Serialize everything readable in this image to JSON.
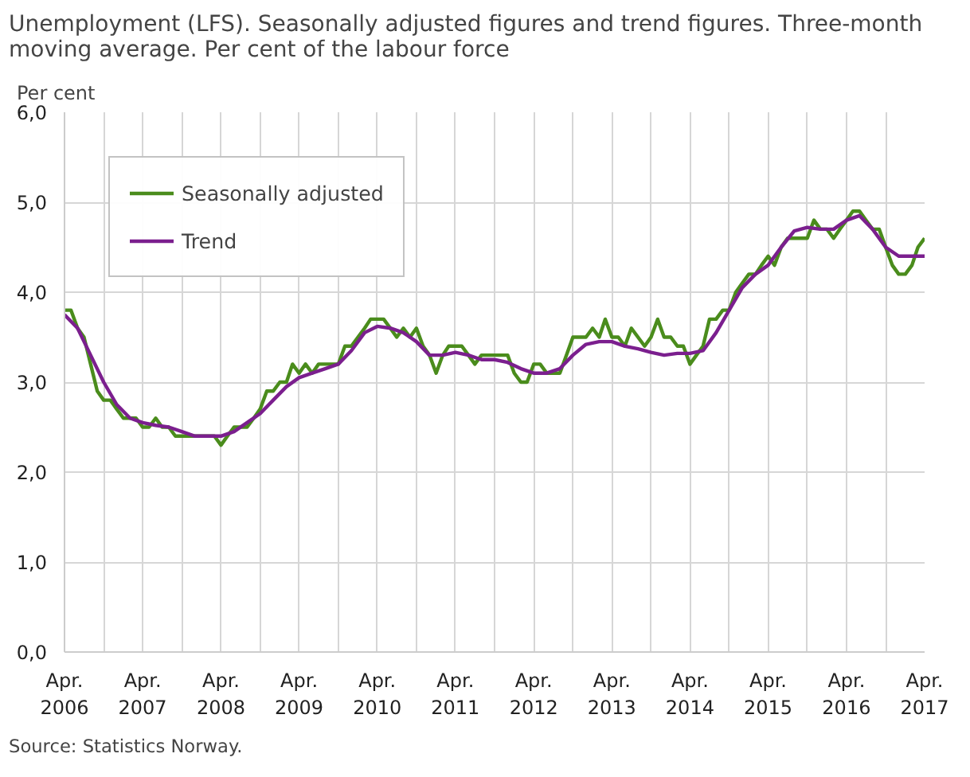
{
  "chart_data": {
    "type": "line",
    "title": "Unemployment (LFS). Seasonally adjusted figures and trend figures. Three-month moving average. Per cent of the labour force",
    "ylabel": "Per cent",
    "annotations": [
      "Source: Statistics Norway."
    ],
    "xlim": [
      "2006-04",
      "2017-04"
    ],
    "xticks": [
      {
        "value": "2006-04",
        "label": "Apr.\n2006"
      },
      {
        "value": "2006-10",
        "label": null
      },
      {
        "value": "2007-04",
        "label": "Apr.\n2007"
      },
      {
        "value": "2007-10",
        "label": null
      },
      {
        "value": "2008-04",
        "label": "Apr.\n2008"
      },
      {
        "value": "2008-10",
        "label": null
      },
      {
        "value": "2009-04",
        "label": "Apr.\n2009"
      },
      {
        "value": "2009-10",
        "label": null
      },
      {
        "value": "2010-04",
        "label": "Apr.\n2010"
      },
      {
        "value": "2010-10",
        "label": null
      },
      {
        "value": "2011-04",
        "label": "Apr.\n2011"
      },
      {
        "value": "2011-10",
        "label": null
      },
      {
        "value": "2012-04",
        "label": "Apr.\n2012"
      },
      {
        "value": "2012-10",
        "label": null
      },
      {
        "value": "2013-04",
        "label": "Apr.\n2013"
      },
      {
        "value": "2013-10",
        "label": null
      },
      {
        "value": "2014-04",
        "label": "Apr.\n2014"
      },
      {
        "value": "2014-10",
        "label": null
      },
      {
        "value": "2015-04",
        "label": "Apr.\n2015"
      },
      {
        "value": "2015-10",
        "label": null
      },
      {
        "value": "2016-04",
        "label": "Apr.\n2016"
      },
      {
        "value": "2016-10",
        "label": null
      },
      {
        "value": "2017-04",
        "label": "Apr.\n2017"
      }
    ],
    "ylim": [
      0,
      6
    ],
    "yticks": [
      {
        "value": 0,
        "label": "0,0"
      },
      {
        "value": 1,
        "label": "1,0"
      },
      {
        "value": 2,
        "label": "2,0"
      },
      {
        "value": 3,
        "label": "3,0"
      },
      {
        "value": 4,
        "label": "4,0"
      },
      {
        "value": 5,
        "label": "5,0"
      },
      {
        "value": 6,
        "label": "6,0"
      }
    ],
    "grid": true,
    "legend": "top left",
    "marker": "none",
    "line_style": "solid",
    "series": [
      {
        "name": "Seasonally adjusted",
        "color": "#4a8c1c",
        "x": [
          "2006-04",
          "2006-05",
          "2006-06",
          "2006-07",
          "2006-08",
          "2006-09",
          "2006-10",
          "2006-11",
          "2006-12",
          "2007-01",
          "2007-02",
          "2007-03",
          "2007-04",
          "2007-05",
          "2007-06",
          "2007-07",
          "2007-08",
          "2007-09",
          "2007-10",
          "2007-11",
          "2007-12",
          "2008-01",
          "2008-02",
          "2008-03",
          "2008-04",
          "2008-05",
          "2008-06",
          "2008-07",
          "2008-08",
          "2008-09",
          "2008-10",
          "2008-11",
          "2008-12",
          "2009-01",
          "2009-02",
          "2009-03",
          "2009-04",
          "2009-05",
          "2009-06",
          "2009-07",
          "2009-08",
          "2009-09",
          "2009-10",
          "2009-11",
          "2009-12",
          "2010-01",
          "2010-02",
          "2010-03",
          "2010-04",
          "2010-05",
          "2010-06",
          "2010-07",
          "2010-08",
          "2010-09",
          "2010-10",
          "2010-11",
          "2010-12",
          "2011-01",
          "2011-02",
          "2011-03",
          "2011-04",
          "2011-05",
          "2011-06",
          "2011-07",
          "2011-08",
          "2011-09",
          "2011-10",
          "2011-11",
          "2011-12",
          "2012-01",
          "2012-02",
          "2012-03",
          "2012-04",
          "2012-05",
          "2012-06",
          "2012-07",
          "2012-08",
          "2012-09",
          "2012-10",
          "2012-11",
          "2012-12",
          "2013-01",
          "2013-02",
          "2013-03",
          "2013-04",
          "2013-05",
          "2013-06",
          "2013-07",
          "2013-08",
          "2013-09",
          "2013-10",
          "2013-11",
          "2013-12",
          "2014-01",
          "2014-02",
          "2014-03",
          "2014-04",
          "2014-05",
          "2014-06",
          "2014-07",
          "2014-08",
          "2014-09",
          "2014-10",
          "2014-11",
          "2014-12",
          "2015-01",
          "2015-02",
          "2015-03",
          "2015-04",
          "2015-05",
          "2015-06",
          "2015-07",
          "2015-08",
          "2015-09",
          "2015-10",
          "2015-11",
          "2015-12",
          "2016-01",
          "2016-02",
          "2016-03",
          "2016-04",
          "2016-05",
          "2016-06",
          "2016-07",
          "2016-08",
          "2016-09",
          "2016-10",
          "2016-11",
          "2016-12",
          "2017-01",
          "2017-02",
          "2017-03",
          "2017-04"
        ],
        "values": [
          3.8,
          3.8,
          3.6,
          3.5,
          3.2,
          2.9,
          2.8,
          2.8,
          2.7,
          2.6,
          2.6,
          2.6,
          2.5,
          2.5,
          2.6,
          2.5,
          2.5,
          2.4,
          2.4,
          2.4,
          2.4,
          2.4,
          2.4,
          2.4,
          2.3,
          2.4,
          2.5,
          2.5,
          2.5,
          2.6,
          2.7,
          2.9,
          2.9,
          3.0,
          3.0,
          3.2,
          3.1,
          3.2,
          3.1,
          3.2,
          3.2,
          3.2,
          3.2,
          3.4,
          3.4,
          3.5,
          3.6,
          3.7,
          3.7,
          3.7,
          3.6,
          3.5,
          3.6,
          3.5,
          3.6,
          3.4,
          3.3,
          3.1,
          3.3,
          3.4,
          3.4,
          3.4,
          3.3,
          3.2,
          3.3,
          3.3,
          3.3,
          3.3,
          3.3,
          3.1,
          3.0,
          3.0,
          3.2,
          3.2,
          3.1,
          3.1,
          3.1,
          3.3,
          3.5,
          3.5,
          3.5,
          3.6,
          3.5,
          3.7,
          3.5,
          3.5,
          3.4,
          3.6,
          3.5,
          3.4,
          3.5,
          3.7,
          3.5,
          3.5,
          3.4,
          3.4,
          3.2,
          3.3,
          3.4,
          3.7,
          3.7,
          3.8,
          3.8,
          4.0,
          4.1,
          4.2,
          4.2,
          4.3,
          4.4,
          4.3,
          4.5,
          4.6,
          4.6,
          4.6,
          4.6,
          4.8,
          4.7,
          4.7,
          4.6,
          4.7,
          4.8,
          4.9,
          4.9,
          4.8,
          4.7,
          4.7,
          4.5,
          4.3,
          4.2,
          4.2,
          4.3,
          4.5,
          4.6
        ]
      },
      {
        "name": "Trend",
        "color": "#7b1f8e",
        "x": [
          "2006-04",
          "2006-06",
          "2006-08",
          "2006-10",
          "2006-12",
          "2007-02",
          "2007-04",
          "2007-06",
          "2007-08",
          "2007-10",
          "2007-12",
          "2008-02",
          "2008-04",
          "2008-06",
          "2008-08",
          "2008-10",
          "2008-12",
          "2009-02",
          "2009-04",
          "2009-06",
          "2009-08",
          "2009-10",
          "2009-12",
          "2010-02",
          "2010-04",
          "2010-06",
          "2010-08",
          "2010-10",
          "2010-12",
          "2011-02",
          "2011-04",
          "2011-06",
          "2011-08",
          "2011-10",
          "2011-12",
          "2012-02",
          "2012-04",
          "2012-06",
          "2012-08",
          "2012-10",
          "2012-12",
          "2013-02",
          "2013-04",
          "2013-06",
          "2013-08",
          "2013-10",
          "2013-12",
          "2014-02",
          "2014-04",
          "2014-06",
          "2014-08",
          "2014-10",
          "2014-12",
          "2015-02",
          "2015-04",
          "2015-06",
          "2015-08",
          "2015-10",
          "2015-12",
          "2016-02",
          "2016-04",
          "2016-06",
          "2016-08",
          "2016-10",
          "2016-12",
          "2017-02",
          "2017-04"
        ],
        "values": [
          3.75,
          3.6,
          3.3,
          3.0,
          2.75,
          2.6,
          2.55,
          2.52,
          2.5,
          2.45,
          2.4,
          2.4,
          2.4,
          2.45,
          2.55,
          2.65,
          2.8,
          2.95,
          3.05,
          3.1,
          3.15,
          3.2,
          3.35,
          3.55,
          3.62,
          3.6,
          3.55,
          3.45,
          3.3,
          3.3,
          3.33,
          3.3,
          3.25,
          3.25,
          3.22,
          3.15,
          3.1,
          3.1,
          3.15,
          3.3,
          3.42,
          3.45,
          3.45,
          3.4,
          3.37,
          3.33,
          3.3,
          3.32,
          3.32,
          3.35,
          3.55,
          3.8,
          4.05,
          4.2,
          4.3,
          4.5,
          4.68,
          4.72,
          4.7,
          4.7,
          4.8,
          4.85,
          4.7,
          4.5,
          4.4,
          4.4,
          4.4
        ]
      }
    ]
  }
}
